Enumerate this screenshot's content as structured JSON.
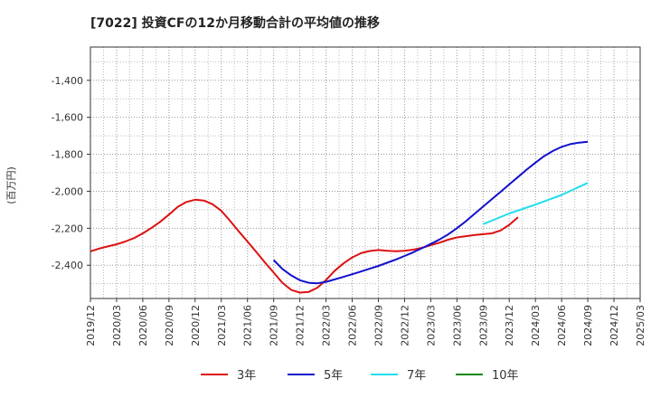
{
  "chart_data": {
    "type": "line",
    "title": "[7022]  投資CFの12か月移動合計の平均値の推移",
    "ylabel": "(百万円)",
    "ylim": [
      -2580,
      -1220
    ],
    "yticks": [
      -1400,
      -1600,
      -1800,
      -2000,
      -2200,
      -2400
    ],
    "ytick_labels": [
      "-1,400",
      "-1,600",
      "-1,800",
      "-2,000",
      "-2,200",
      "-2,400"
    ],
    "x_start": "2019-12",
    "x_end": "2025-03",
    "xtick_labels": [
      "2019/12",
      "2020/03",
      "2020/06",
      "2020/09",
      "2020/12",
      "2021/03",
      "2021/06",
      "2021/09",
      "2021/12",
      "2022/03",
      "2022/06",
      "2022/09",
      "2022/12",
      "2023/03",
      "2023/06",
      "2023/09",
      "2023/12",
      "2024/03",
      "2024/06",
      "2024/09",
      "2024/12",
      "2025/03"
    ],
    "grid": true,
    "legend_position": "bottom",
    "series": [
      {
        "name": "3年",
        "color": "#dd1111",
        "points": [
          [
            "2019-12",
            -2325
          ],
          [
            "2020-01",
            -2310
          ],
          [
            "2020-02",
            -2298
          ],
          [
            "2020-03",
            -2287
          ],
          [
            "2020-04",
            -2272
          ],
          [
            "2020-05",
            -2253
          ],
          [
            "2020-06",
            -2228
          ],
          [
            "2020-07",
            -2198
          ],
          [
            "2020-08",
            -2165
          ],
          [
            "2020-09",
            -2126
          ],
          [
            "2020-10",
            -2085
          ],
          [
            "2020-11",
            -2058
          ],
          [
            "2020-12",
            -2046
          ],
          [
            "2021-01",
            -2050
          ],
          [
            "2021-02",
            -2070
          ],
          [
            "2021-03",
            -2106
          ],
          [
            "2021-04",
            -2160
          ],
          [
            "2021-05",
            -2217
          ],
          [
            "2021-06",
            -2272
          ],
          [
            "2021-07",
            -2328
          ],
          [
            "2021-08",
            -2385
          ],
          [
            "2021-09",
            -2440
          ],
          [
            "2021-10",
            -2495
          ],
          [
            "2021-11",
            -2533
          ],
          [
            "2021-12",
            -2548
          ],
          [
            "2022-01",
            -2545
          ],
          [
            "2022-02",
            -2522
          ],
          [
            "2022-03",
            -2480
          ],
          [
            "2022-04",
            -2430
          ],
          [
            "2022-05",
            -2390
          ],
          [
            "2022-06",
            -2358
          ],
          [
            "2022-07",
            -2335
          ],
          [
            "2022-08",
            -2323
          ],
          [
            "2022-09",
            -2318
          ],
          [
            "2022-10",
            -2322
          ],
          [
            "2022-11",
            -2324
          ],
          [
            "2022-12",
            -2322
          ],
          [
            "2023-01",
            -2316
          ],
          [
            "2023-02",
            -2306
          ],
          [
            "2023-03",
            -2292
          ],
          [
            "2023-04",
            -2278
          ],
          [
            "2023-05",
            -2262
          ],
          [
            "2023-06",
            -2250
          ],
          [
            "2023-07",
            -2243
          ],
          [
            "2023-08",
            -2237
          ],
          [
            "2023-09",
            -2232
          ],
          [
            "2023-10",
            -2228
          ],
          [
            "2023-11",
            -2212
          ],
          [
            "2023-12",
            -2182
          ],
          [
            "2023-13",
            -2140
          ]
        ]
      },
      {
        "name": "5年",
        "color": "#1111cc",
        "points": [
          [
            "2021-09",
            -2372
          ],
          [
            "2021-10",
            -2420
          ],
          [
            "2021-11",
            -2455
          ],
          [
            "2021-12",
            -2481
          ],
          [
            "2022-01",
            -2495
          ],
          [
            "2022-02",
            -2498
          ],
          [
            "2022-03",
            -2490
          ],
          [
            "2022-04",
            -2477
          ],
          [
            "2022-05",
            -2463
          ],
          [
            "2022-06",
            -2449
          ],
          [
            "2022-07",
            -2434
          ],
          [
            "2022-08",
            -2419
          ],
          [
            "2022-09",
            -2404
          ],
          [
            "2022-10",
            -2387
          ],
          [
            "2022-11",
            -2369
          ],
          [
            "2022-12",
            -2350
          ],
          [
            "2023-01",
            -2330
          ],
          [
            "2023-02",
            -2308
          ],
          [
            "2023-03",
            -2285
          ],
          [
            "2023-04",
            -2261
          ],
          [
            "2023-05",
            -2233
          ],
          [
            "2023-06",
            -2200
          ],
          [
            "2023-07",
            -2163
          ],
          [
            "2023-08",
            -2123
          ],
          [
            "2023-09",
            -2083
          ],
          [
            "2023-10",
            -2043
          ],
          [
            "2023-11",
            -2003
          ],
          [
            "2023-12",
            -1963
          ],
          [
            "2024-01",
            -1923
          ],
          [
            "2024-02",
            -1883
          ],
          [
            "2024-03",
            -1845
          ],
          [
            "2024-04",
            -1810
          ],
          [
            "2024-05",
            -1782
          ],
          [
            "2024-06",
            -1760
          ],
          [
            "2024-07",
            -1745
          ],
          [
            "2024-08",
            -1737
          ],
          [
            "2024-09",
            -1732
          ]
        ]
      },
      {
        "name": "7年",
        "color": "#22ddee",
        "points": [
          [
            "2023-09",
            -2178
          ],
          [
            "2023-12",
            -2120
          ],
          [
            "2024-03",
            -2072
          ],
          [
            "2024-06",
            -2020
          ],
          [
            "2024-09",
            -1955
          ]
        ]
      },
      {
        "name": "10年",
        "color": "#118811",
        "points": []
      }
    ]
  }
}
